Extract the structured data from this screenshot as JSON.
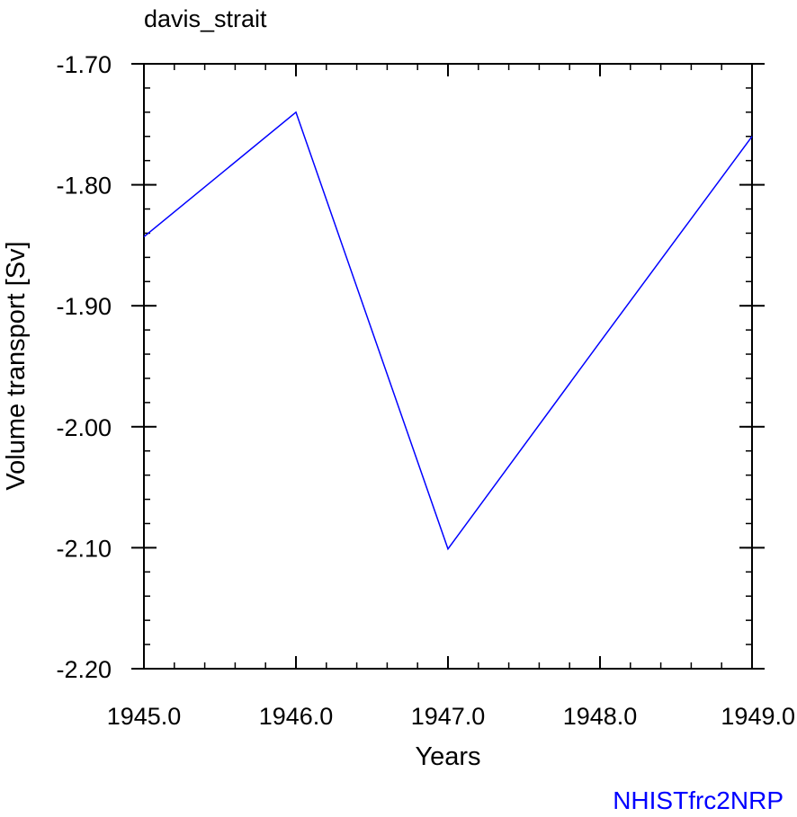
{
  "chart_data": {
    "type": "line",
    "title": "davis_strait",
    "xlabel": "Years",
    "ylabel": "Volume transport [Sv]",
    "x": [
      1945.0,
      1946.0,
      1947.0,
      1948.0,
      1949.0
    ],
    "series": [
      {
        "values": [
          -1.843,
          -1.74,
          -2.101,
          -1.93,
          -1.76
        ],
        "color": "#0000ff"
      }
    ],
    "xlim": [
      1945.0,
      1949.0
    ],
    "ylim": [
      -2.2,
      -1.7
    ],
    "xticks": [
      1945.0,
      1946.0,
      1947.0,
      1948.0,
      1949.0
    ],
    "xtick_labels": [
      "1945.0",
      "1946.0",
      "1947.0",
      "1948.0",
      "1949.0"
    ],
    "yticks": [
      -1.7,
      -1.8,
      -1.9,
      -2.0,
      -2.1,
      -2.2
    ],
    "ytick_labels": [
      "-1.70",
      "-1.80",
      "-1.90",
      "-2.00",
      "-2.10",
      "-2.20"
    ],
    "x_minor_step": 0.2,
    "y_minor_step": 0.02,
    "grid": false,
    "legend": "none"
  },
  "footer_label": "NHISTfrc2NRP",
  "colors": {
    "series": "#0000ff",
    "footer": "#0000ff",
    "axes": "#000000"
  }
}
